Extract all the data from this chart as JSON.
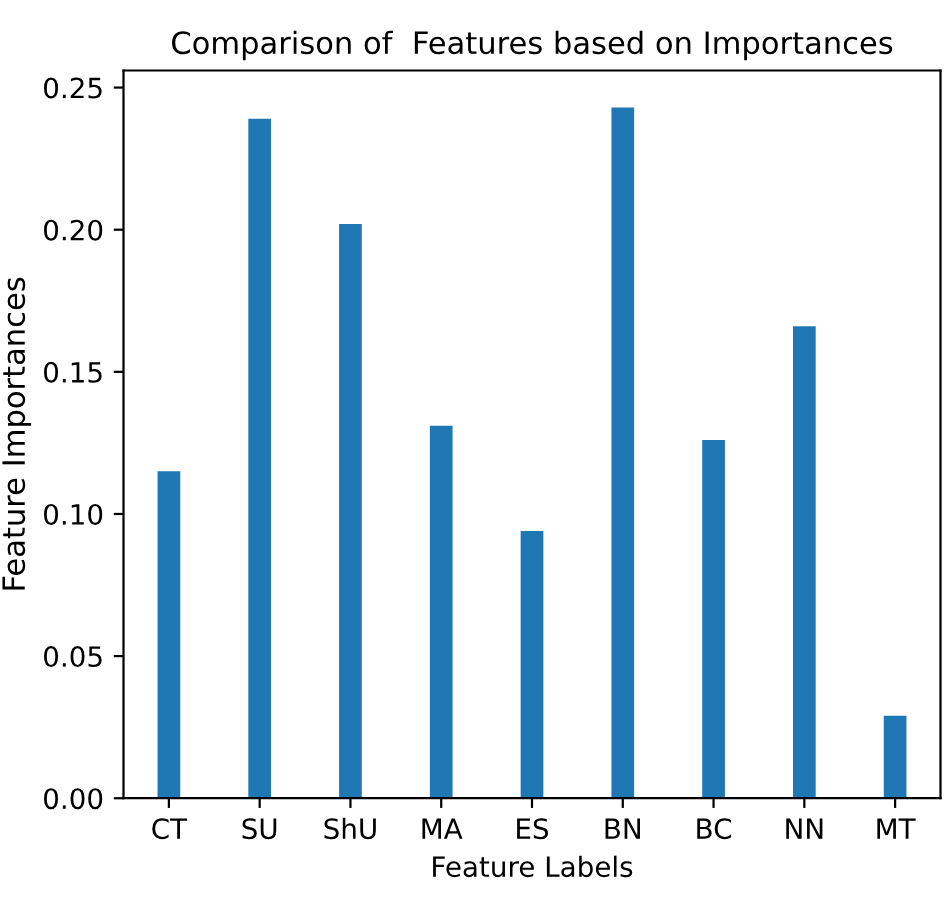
{
  "chart_data": {
    "type": "bar",
    "title": "Comparison of  Features based on Importances",
    "xlabel": "Feature Labels",
    "ylabel": "Feature Importances",
    "categories": [
      "CT",
      "SU",
      "ShU",
      "MA",
      "ES",
      "BN",
      "BC",
      "NN",
      "MT"
    ],
    "values": [
      0.115,
      0.239,
      0.202,
      0.131,
      0.094,
      0.243,
      0.126,
      0.166,
      0.029
    ],
    "color": "#1f77b4",
    "ylim": [
      0,
      0.256
    ],
    "yticks": [
      {
        "value": 0,
        "label": "0.00"
      },
      {
        "value": 0.05,
        "label": "0.05"
      },
      {
        "value": 0.1,
        "label": "0.10"
      },
      {
        "value": 0.15,
        "label": "0.15"
      },
      {
        "value": 0.2,
        "label": "0.20"
      },
      {
        "value": 0.25,
        "label": "0.25"
      }
    ],
    "grid": false
  }
}
